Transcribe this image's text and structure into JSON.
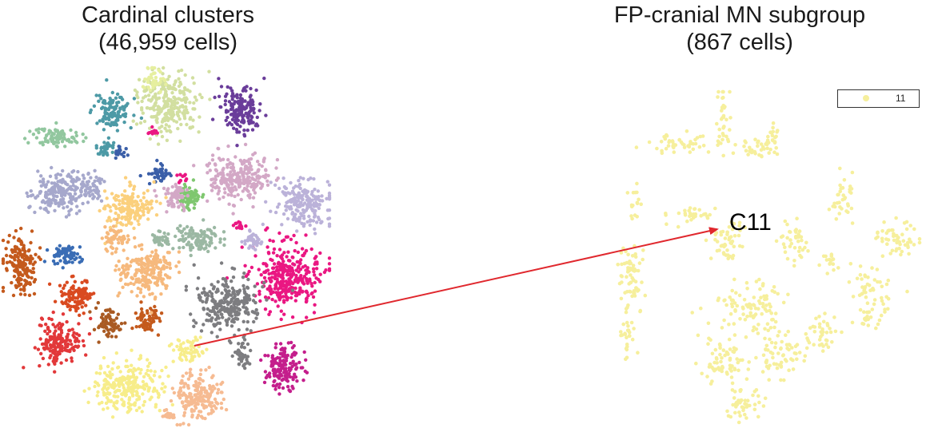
{
  "chart_data": [
    {
      "type": "scatter",
      "title_lines": [
        "Cardinal clusters",
        "(46,959 cells)"
      ],
      "xlabel": "",
      "ylabel": "",
      "grid": false,
      "axes_visible": false,
      "colors": [
        "#e6ef9f",
        "#d2dfa0",
        "#6a3d9a",
        "#4d9aa6",
        "#92c79f",
        "#a6a8cc",
        "#ea1782",
        "#3a6db5",
        "#c45a1d",
        "#d94a20",
        "#e2383a",
        "#a95a23",
        "#fbd07d",
        "#f6b97d",
        "#9bb8a3",
        "#7fc76f",
        "#d3a8c6",
        "#bbb2d9",
        "#7d7d80",
        "#c41e8c",
        "#f7ed8a",
        "#f6bb92",
        "#3b5fa8"
      ]
    },
    {
      "type": "scatter",
      "title_lines": [
        "FP-cranial MN subgroup",
        "(867 cells)"
      ],
      "xlabel": "",
      "ylabel": "",
      "grid": false,
      "axes_visible": false,
      "series": [
        {
          "name": "11",
          "color": "#f6ef9c"
        }
      ],
      "legend": {
        "placement": "top-right",
        "entries": [
          "11"
        ]
      },
      "annotation": {
        "label": "C11",
        "arrow_color": "#e0282e"
      }
    }
  ]
}
